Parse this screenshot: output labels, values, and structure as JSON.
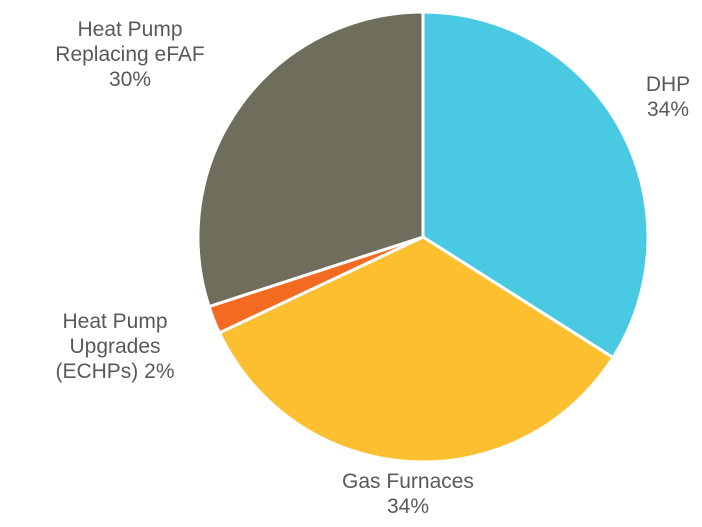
{
  "chart_data": {
    "type": "pie",
    "categories": [
      "DHP",
      "Gas Furnaces",
      "Heat Pump Upgrades (ECHPs)",
      "Heat Pump Replacing eFAF"
    ],
    "values": [
      34,
      34,
      2,
      30
    ],
    "value_labels": [
      "34%",
      "34%",
      "2%",
      "30%"
    ],
    "colors": [
      "#4ac9e2",
      "#fbbf2f",
      "#f26b21",
      "#6f6d5b"
    ]
  }
}
